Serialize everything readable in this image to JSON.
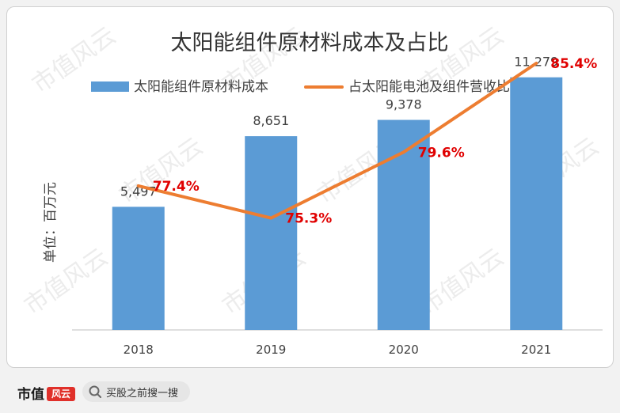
{
  "watermark": "市值风云",
  "footer": {
    "brand_text": "市值",
    "brand_mark": "风云",
    "search_text": "买股之前搜一搜"
  },
  "colors": {
    "bar": "#5b9bd5",
    "line": "#ed7d31",
    "pct_label": "#e00000",
    "axis": "#bfbfbf",
    "text": "#404040"
  },
  "chart_data": {
    "type": "bar",
    "title": "太阳能组件原材料成本及占比",
    "ylabel": "单位：百万元",
    "categories": [
      "2018",
      "2019",
      "2020",
      "2021"
    ],
    "series": [
      {
        "name": "太阳能组件原材料成本",
        "type": "bar",
        "values": [
          5497,
          8651,
          9378,
          11279
        ],
        "labels": [
          "5,497",
          "8,651",
          "9,378",
          "11,279"
        ]
      },
      {
        "name": "占太阳能电池及组件营收比重",
        "type": "line",
        "values": [
          77.4,
          75.3,
          79.6,
          85.4
        ],
        "labels": [
          "77.4%",
          "75.3%",
          "79.6%",
          "85.4%"
        ]
      }
    ],
    "ylim": [
      0,
      13000
    ],
    "y2lim": [
      68,
      87
    ],
    "legend": "top",
    "grid": false
  }
}
